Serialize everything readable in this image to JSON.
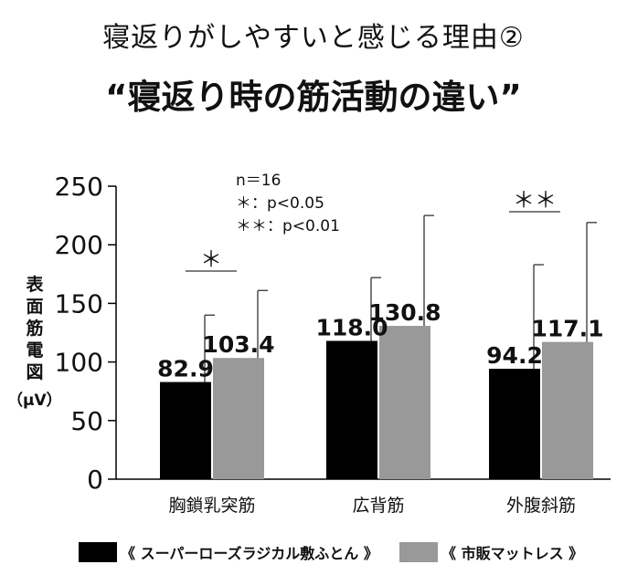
{
  "header": {
    "subtitle": "寝返りがしやすいと感じる理由②",
    "title": "“寝返り時の筋活動の違い”"
  },
  "chart_data": {
    "type": "bar",
    "ylabel": "表面筋電図",
    "yunit": "（μV）",
    "ylim": [
      0,
      250
    ],
    "yticks": [
      "0",
      "50",
      "100",
      "150",
      "200",
      "250"
    ],
    "categories": [
      "胸鎖乳突筋",
      "広背筋",
      "外腹斜筋"
    ],
    "series": [
      {
        "name": "《 スーパーローズラジカル敷ふとん 》",
        "color": "#000000",
        "values": [
          82.9,
          118.0,
          94.2
        ],
        "labels": [
          "82.9",
          "118.0",
          "94.2"
        ],
        "error_top": [
          140,
          172,
          183
        ]
      },
      {
        "name": "《 市販マットレス 》",
        "color": "#999999",
        "values": [
          103.4,
          130.8,
          117.1
        ],
        "labels": [
          "103.4",
          "130.8",
          "117.1"
        ],
        "error_top": [
          161,
          225,
          219
        ]
      }
    ],
    "significance": [
      {
        "category": 0,
        "marker": "＊"
      },
      {
        "category": 2,
        "marker": "＊＊"
      }
    ],
    "annotations": [
      "n＝16",
      "＊：p<0.05",
      "＊＊：p<0.01"
    ],
    "grid": false
  },
  "legend": [
    {
      "label": "《 スーパーローズラジカル敷ふとん 》",
      "color": "#000000"
    },
    {
      "label": "《 市販マットレス 》",
      "color": "#999999"
    }
  ]
}
